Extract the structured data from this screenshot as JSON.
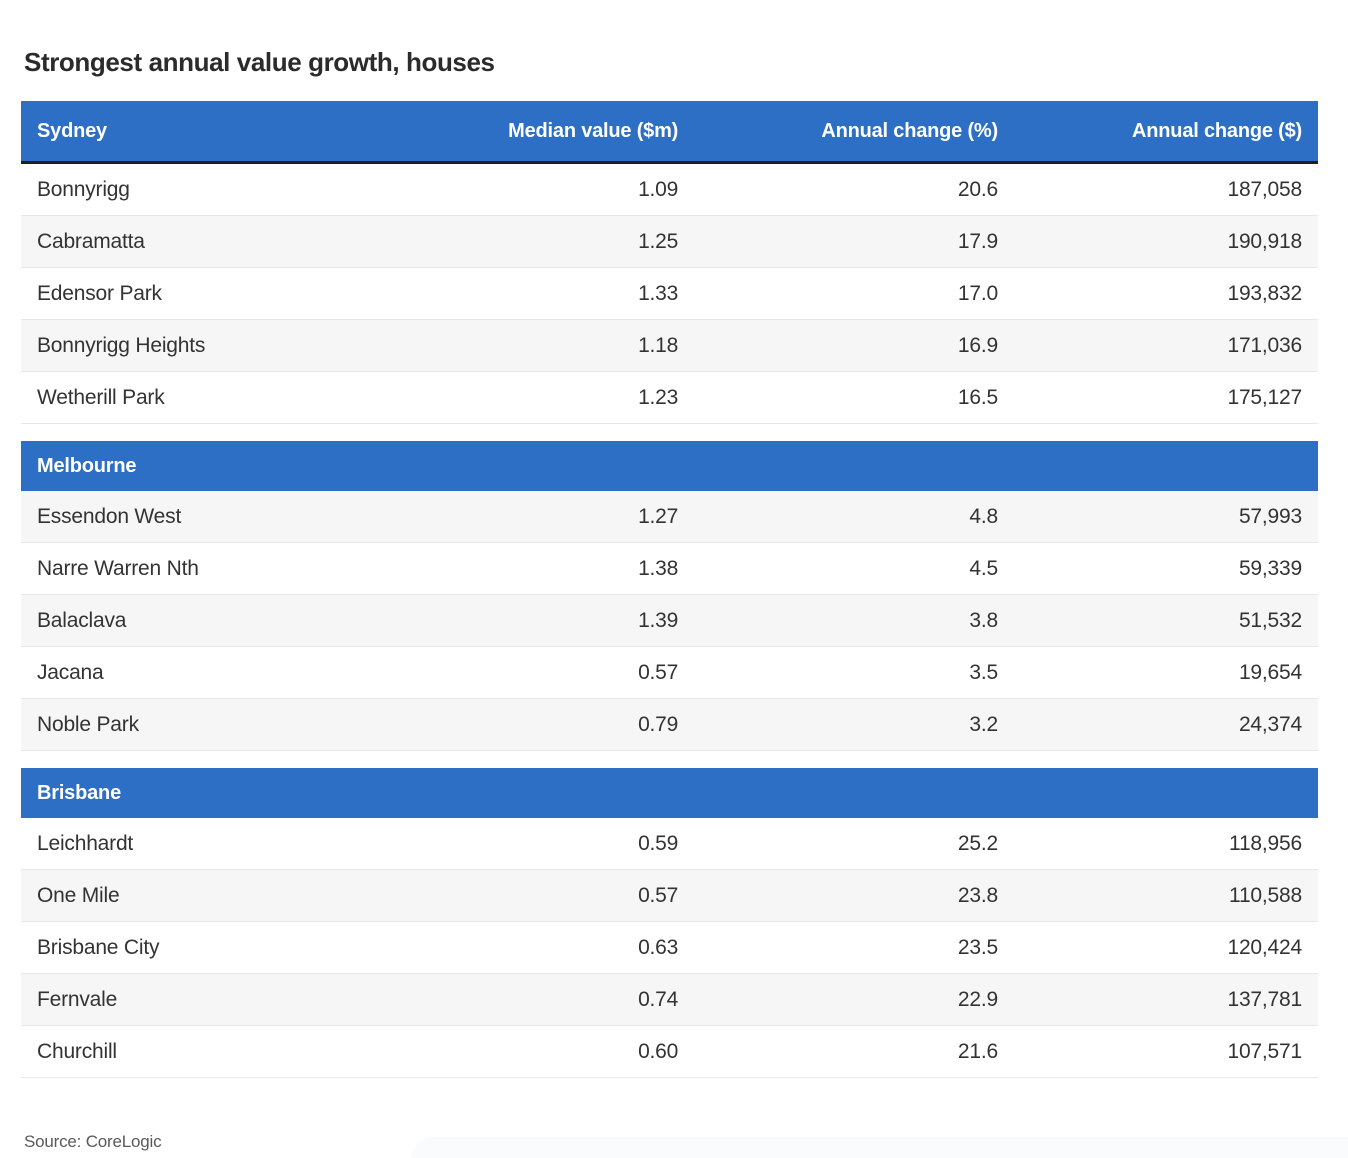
{
  "title": "Strongest annual value growth, houses",
  "source": "Source: CoreLogic",
  "colors": {
    "header_bg": "#2d6fc4",
    "header_text": "#ffffff",
    "row_alt_bg": "#f6f6f6",
    "row_border": "#e8e8e8",
    "header_underline": "#1f1f1f",
    "title_text": "#2b2b2b",
    "body_text": "#333333",
    "source_text": "#5a5a5a"
  },
  "chart_data": {
    "type": "table",
    "title": "Strongest annual value growth, houses",
    "column_headers": [
      "Median value ($m)",
      "Annual change (%)",
      "Annual change ($)"
    ],
    "sections": [
      {
        "city": "Sydney",
        "rows": [
          {
            "suburb": "Bonnyrigg",
            "median_value_m": "1.09",
            "annual_change_pct": "20.6",
            "annual_change_dollars": "187,058"
          },
          {
            "suburb": "Cabramatta",
            "median_value_m": "1.25",
            "annual_change_pct": "17.9",
            "annual_change_dollars": "190,918"
          },
          {
            "suburb": "Edensor Park",
            "median_value_m": "1.33",
            "annual_change_pct": "17.0",
            "annual_change_dollars": "193,832"
          },
          {
            "suburb": "Bonnyrigg Heights",
            "median_value_m": "1.18",
            "annual_change_pct": "16.9",
            "annual_change_dollars": "171,036"
          },
          {
            "suburb": "Wetherill Park",
            "median_value_m": "1.23",
            "annual_change_pct": "16.5",
            "annual_change_dollars": "175,127"
          }
        ]
      },
      {
        "city": "Melbourne",
        "rows": [
          {
            "suburb": "Essendon West",
            "median_value_m": "1.27",
            "annual_change_pct": "4.8",
            "annual_change_dollars": "57,993"
          },
          {
            "suburb": "Narre Warren Nth",
            "median_value_m": "1.38",
            "annual_change_pct": "4.5",
            "annual_change_dollars": "59,339"
          },
          {
            "suburb": "Balaclava",
            "median_value_m": "1.39",
            "annual_change_pct": "3.8",
            "annual_change_dollars": "51,532"
          },
          {
            "suburb": "Jacana",
            "median_value_m": "0.57",
            "annual_change_pct": "3.5",
            "annual_change_dollars": "19,654"
          },
          {
            "suburb": "Noble Park",
            "median_value_m": "0.79",
            "annual_change_pct": "3.2",
            "annual_change_dollars": "24,374"
          }
        ]
      },
      {
        "city": "Brisbane",
        "rows": [
          {
            "suburb": "Leichhardt",
            "median_value_m": "0.59",
            "annual_change_pct": "25.2",
            "annual_change_dollars": "118,956"
          },
          {
            "suburb": "One Mile",
            "median_value_m": "0.57",
            "annual_change_pct": "23.8",
            "annual_change_dollars": "110,588"
          },
          {
            "suburb": "Brisbane City",
            "median_value_m": "0.63",
            "annual_change_pct": "23.5",
            "annual_change_dollars": "120,424"
          },
          {
            "suburb": "Fernvale",
            "median_value_m": "0.74",
            "annual_change_pct": "22.9",
            "annual_change_dollars": "137,781"
          },
          {
            "suburb": "Churchill",
            "median_value_m": "0.60",
            "annual_change_pct": "21.6",
            "annual_change_dollars": "107,571"
          }
        ]
      }
    ]
  }
}
